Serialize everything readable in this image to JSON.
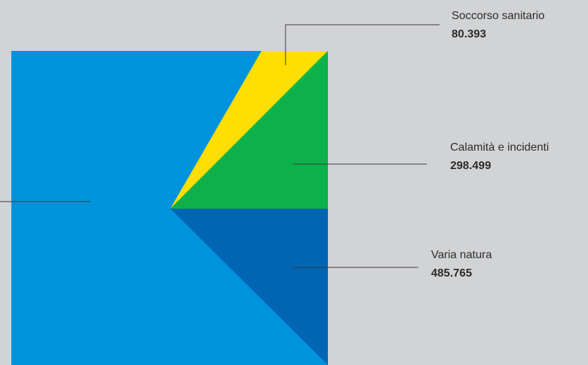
{
  "chart_data": {
    "type": "pie",
    "series": [
      {
        "name": "",
        "values": [
          {
            "label": "Soccorso sanitario",
            "value": 80393,
            "display": "80.393",
            "color": "#ffde00"
          },
          {
            "label": "Calamità e incidenti",
            "value": 298499,
            "display": "298.499",
            "color": "#0db14b"
          },
          {
            "label": "Varia natura",
            "value": 485765,
            "display": "485.765",
            "color": "#0066b3"
          },
          {
            "label": "",
            "value": null,
            "display": "",
            "color": "#0093dd"
          }
        ]
      }
    ],
    "background": "#d2d3d5"
  }
}
